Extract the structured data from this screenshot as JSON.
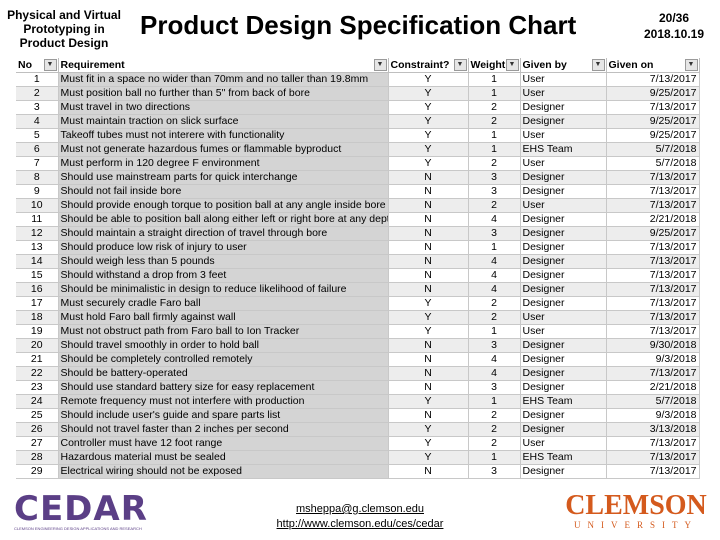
{
  "header": {
    "course_line1": "Physical and Virtual",
    "course_line2": "Prototyping in",
    "course_line3": "Product Design",
    "title": "Product Design Specification Chart",
    "page": "20/36",
    "date": "2018.10.19"
  },
  "table": {
    "columns": [
      "No",
      "Requirement",
      "Constraint?",
      "Weight",
      "Given by",
      "Given on"
    ],
    "rows": [
      [
        "1",
        "Must fit in a space no wider than 70mm and no taller than 19.8mm",
        "Y",
        "1",
        "User",
        "7/13/2017"
      ],
      [
        "2",
        "Must position ball no further than 5\" from back of bore",
        "Y",
        "1",
        "User",
        "9/25/2017"
      ],
      [
        "3",
        "Must travel in two directions",
        "Y",
        "2",
        "Designer",
        "7/13/2017"
      ],
      [
        "4",
        "Must maintain traction on slick surface",
        "Y",
        "2",
        "Designer",
        "9/25/2017"
      ],
      [
        "5",
        "Takeoff tubes must not interere with functionality",
        "Y",
        "1",
        "User",
        "9/25/2017"
      ],
      [
        "6",
        "Must not generate hazardous fumes or flammable byproduct",
        "Y",
        "1",
        "EHS Team",
        "5/7/2018"
      ],
      [
        "7",
        "Must perform in 120 degree F environment",
        "Y",
        "2",
        "User",
        "5/7/2018"
      ],
      [
        "8",
        "Should use mainstream parts for quick interchange",
        "N",
        "3",
        "Designer",
        "7/13/2017"
      ],
      [
        "9",
        "Should not fail inside bore",
        "N",
        "3",
        "Designer",
        "7/13/2017"
      ],
      [
        "10",
        "Should provide enough torque to position ball at any angle inside bore",
        "N",
        "2",
        "User",
        "7/13/2017"
      ],
      [
        "11",
        "Should be able to position ball along either left or right bore at any depth",
        "N",
        "4",
        "Designer",
        "2/21/2018"
      ],
      [
        "12",
        "Should maintain a straight direction of travel through bore",
        "N",
        "3",
        "Designer",
        "9/25/2017"
      ],
      [
        "13",
        "Should produce low risk of injury to user",
        "N",
        "1",
        "Designer",
        "7/13/2017"
      ],
      [
        "14",
        "Should weigh less than 5 pounds",
        "N",
        "4",
        "Designer",
        "7/13/2017"
      ],
      [
        "15",
        "Should withstand a drop from 3 feet",
        "N",
        "4",
        "Designer",
        "7/13/2017"
      ],
      [
        "16",
        "Should be minimalistic in design to reduce likelihood of failure",
        "N",
        "4",
        "Designer",
        "7/13/2017"
      ],
      [
        "17",
        "Must securely cradle Faro ball",
        "Y",
        "2",
        "Designer",
        "7/13/2017"
      ],
      [
        "18",
        "Must hold Faro ball firmly against wall",
        "Y",
        "2",
        "User",
        "7/13/2017"
      ],
      [
        "19",
        "Must not obstruct path from Faro ball to Ion Tracker",
        "Y",
        "1",
        "User",
        "7/13/2017"
      ],
      [
        "20",
        "Should travel smoothly in order to hold ball",
        "N",
        "3",
        "Designer",
        "9/30/2018"
      ],
      [
        "21",
        "Should be completely controlled remotely",
        "N",
        "4",
        "Designer",
        "9/3/2018"
      ],
      [
        "22",
        "Should be battery-operated",
        "N",
        "4",
        "Designer",
        "7/13/2017"
      ],
      [
        "23",
        "Should use standard battery size for easy replacement",
        "N",
        "3",
        "Designer",
        "2/21/2018"
      ],
      [
        "24",
        "Remote frequency must not interfere with production",
        "Y",
        "1",
        "EHS Team",
        "5/7/2018"
      ],
      [
        "25",
        "Should include user's guide and spare parts list",
        "N",
        "2",
        "Designer",
        "9/3/2018"
      ],
      [
        "26",
        "Should not travel faster than 2 inches per second",
        "Y",
        "2",
        "Designer",
        "3/13/2018"
      ],
      [
        "27",
        "Controller must have 12 foot range",
        "Y",
        "2",
        "User",
        "7/13/2017"
      ],
      [
        "28",
        "Hazardous material must be sealed",
        "Y",
        "1",
        "EHS Team",
        "7/13/2017"
      ],
      [
        "29",
        "Electrical wiring should not be exposed",
        "N",
        "3",
        "Designer",
        "7/13/2017"
      ]
    ]
  },
  "footer": {
    "email": "msheppa@g.clemson.edu",
    "url": "http://www.clemson.edu/ces/cedar",
    "cedar_logo_text": "CEDAR",
    "cedar_logo_sub": "CLEMSON ENGINEERING DESIGN APPLICATIONS AND RESEARCH",
    "clemson_logo_text": "CLEMSON",
    "clemson_logo_sub": "UNIVERSITY"
  },
  "colors": {
    "cedar_purple": "#5b3f86",
    "clemson_orange": "#d45a1d",
    "requirement_shade": "#d4d4d4"
  },
  "icons": {
    "column_filter": "dropdown-arrow-icon"
  }
}
